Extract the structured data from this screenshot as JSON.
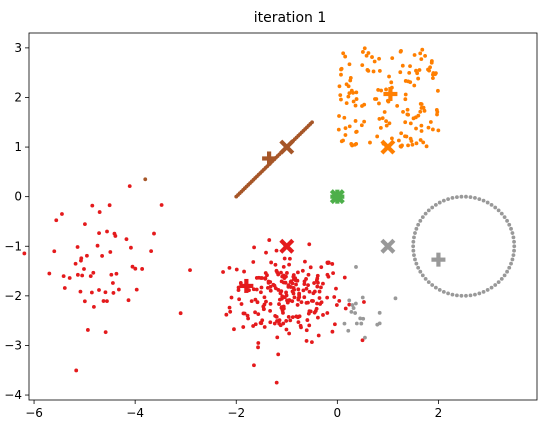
{
  "chart_data": {
    "type": "scatter",
    "title": "iteration 1",
    "xlim": [
      -6.1,
      3.95
    ],
    "ylim": [
      -4.1,
      3.3
    ],
    "xticks": [
      -6,
      -4,
      -2,
      0,
      2
    ],
    "xtick_labels": [
      "−6",
      "−4",
      "−2",
      "0",
      "2"
    ],
    "yticks": [
      -4,
      -3,
      -2,
      -1,
      0,
      1,
      2,
      3
    ],
    "ytick_labels": [
      "−4",
      "−3",
      "−2",
      "−1",
      "0",
      "1",
      "2",
      "3"
    ],
    "grid": false,
    "colors": {
      "red": "#e41a1c",
      "orange": "#ff7f00",
      "brown": "#a65628",
      "green": "#4daf4a",
      "gray": "#999999"
    },
    "clusters": [
      {
        "color": "red",
        "shape": "gaussian",
        "center": [
          -1,
          -2
        ],
        "spread": [
          0.55,
          0.45
        ],
        "count": 230
      },
      {
        "color": "red",
        "shape": "gaussian",
        "center": [
          -4.6,
          -1.3
        ],
        "spread": [
          0.55,
          0.65
        ],
        "count": 55
      },
      {
        "color": "orange",
        "shape": "uniform",
        "x_range": [
          0,
          2
        ],
        "y_range": [
          1,
          3
        ],
        "count": 150
      },
      {
        "color": "brown",
        "shape": "line",
        "from": [
          -2,
          0
        ],
        "to": [
          -0.5,
          1.5
        ],
        "count": 45
      },
      {
        "color": "gray",
        "shape": "circle",
        "center": [
          2.5,
          -1
        ],
        "radius": 1,
        "count": 70
      },
      {
        "color": "gray",
        "shape": "gaussian",
        "center": [
          0.5,
          -2.4
        ],
        "spread": [
          0.3,
          0.3
        ],
        "count": 18
      }
    ],
    "extra_points": [
      {
        "color": "brown",
        "x": -3.8,
        "y": 0.35
      },
      {
        "color": "red",
        "x": -3.1,
        "y": -2.35
      },
      {
        "color": "red",
        "x": -1.65,
        "y": -3.4
      },
      {
        "color": "red",
        "x": -1.2,
        "y": -3.75
      },
      {
        "color": "red",
        "x": -5.6,
        "y": -1.1
      },
      {
        "color": "gray",
        "x": 1.15,
        "y": -2.05
      }
    ],
    "markers": [
      {
        "color": "red",
        "symbol": "plus",
        "x": -1.8,
        "y": -1.8
      },
      {
        "color": "red",
        "symbol": "x",
        "x": -1.0,
        "y": -1.0
      },
      {
        "color": "orange",
        "symbol": "plus",
        "x": 1.05,
        "y": 2.07
      },
      {
        "color": "orange",
        "symbol": "x",
        "x": 1.0,
        "y": 1.0
      },
      {
        "color": "brown",
        "symbol": "plus",
        "x": -1.35,
        "y": 0.77
      },
      {
        "color": "brown",
        "symbol": "x",
        "x": -1.0,
        "y": 1.0
      },
      {
        "color": "green",
        "symbol": "plus",
        "x": 0.0,
        "y": 0.0
      },
      {
        "color": "green",
        "symbol": "x",
        "x": 0.0,
        "y": 0.0
      },
      {
        "color": "gray",
        "symbol": "plus",
        "x": 2.0,
        "y": -1.27
      },
      {
        "color": "gray",
        "symbol": "x",
        "x": 1.0,
        "y": -1.0
      }
    ]
  }
}
